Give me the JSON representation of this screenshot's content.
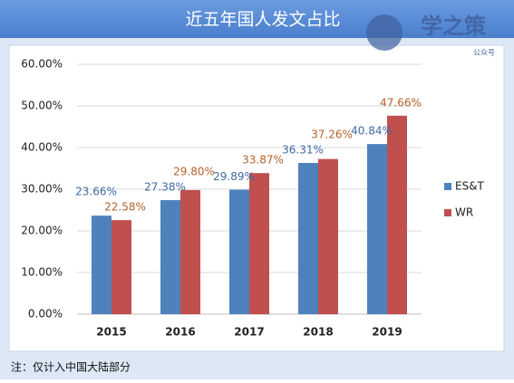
{
  "chart_data": {
    "type": "bar",
    "title": "近五年国人发文占比",
    "watermark": {
      "text": "学之策",
      "subtext": "公众号"
    },
    "note": "注：仅计入中国大陆部分",
    "categories": [
      "2015",
      "2016",
      "2017",
      "2018",
      "2019"
    ],
    "series": [
      {
        "name": "ES&T",
        "color": "#4f81bd",
        "label_color": "#3f6aa3",
        "values": [
          23.66,
          27.38,
          29.89,
          36.31,
          40.84
        ],
        "value_labels": [
          "23.66%",
          "27.38%",
          "29.89%",
          "36.31%",
          "40.84%"
        ]
      },
      {
        "name": "WR",
        "color": "#c0504d",
        "label_color": "#b5602a",
        "values": [
          22.58,
          29.8,
          33.87,
          37.26,
          47.66
        ],
        "value_labels": [
          "22.58%",
          "29.80%",
          "33.87%",
          "37.26%",
          "47.66%"
        ]
      }
    ],
    "ylim": [
      0,
      60
    ],
    "yticks": [
      {
        "value": 0,
        "label": "0.00%"
      },
      {
        "value": 10,
        "label": "10.00%"
      },
      {
        "value": 20,
        "label": "20.00%"
      },
      {
        "value": 30,
        "label": "30.00%"
      },
      {
        "value": 40,
        "label": "40.00%"
      },
      {
        "value": 50,
        "label": "50.00%"
      },
      {
        "value": 60,
        "label": "60.00%"
      }
    ],
    "grid": true,
    "legend": "right"
  }
}
